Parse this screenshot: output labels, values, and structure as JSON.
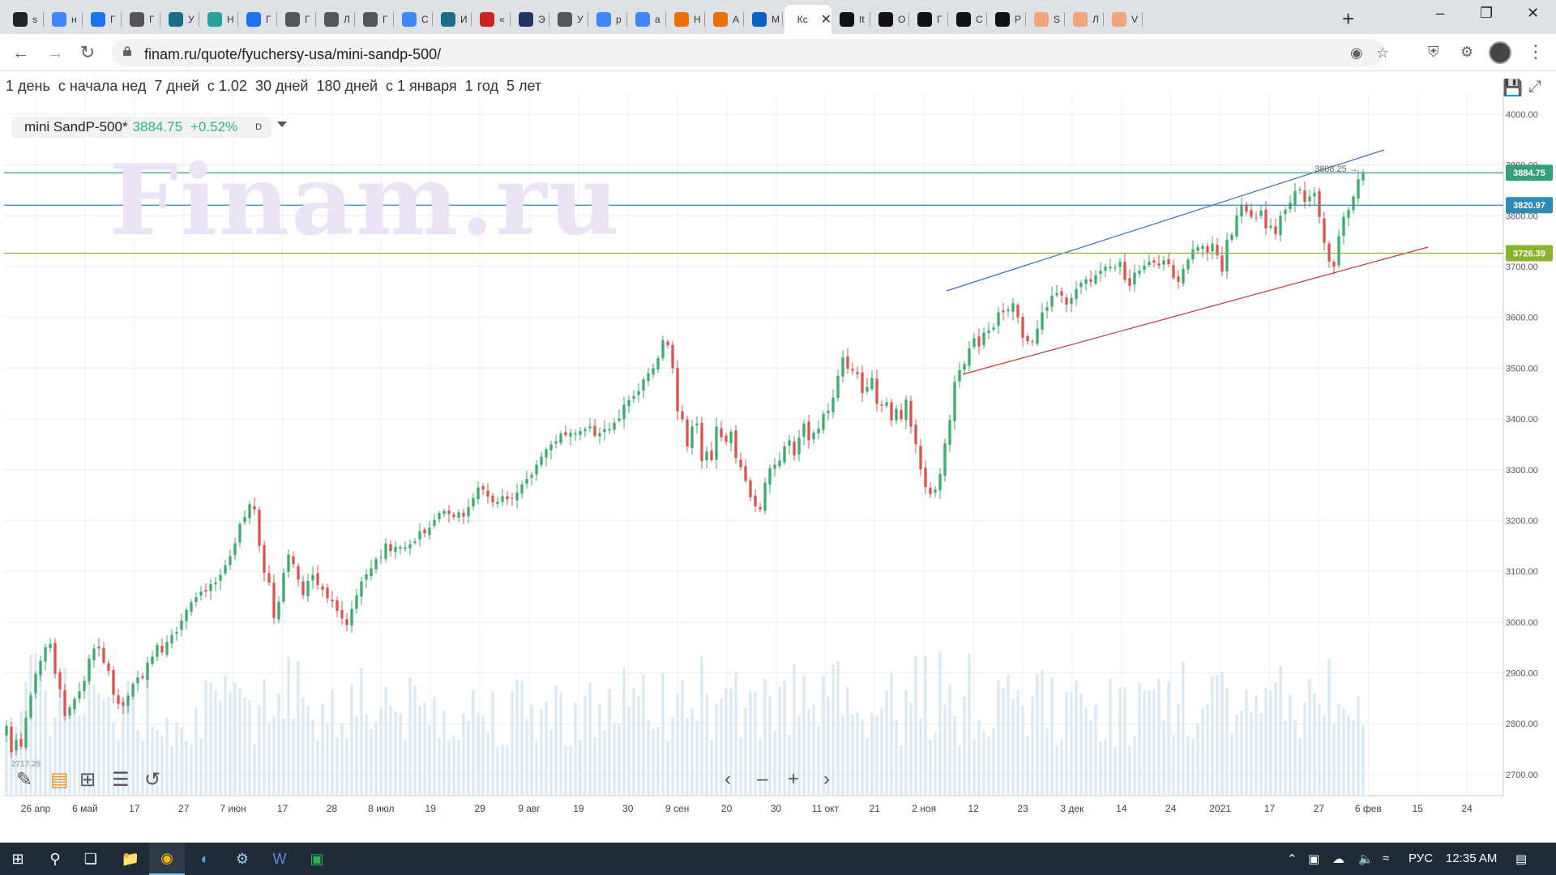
{
  "browser": {
    "tabs": [
      {
        "favicon": "app-icon",
        "color": "#222222",
        "label": "s"
      },
      {
        "favicon": "google-icon",
        "color": "#4285f4",
        "label": "н"
      },
      {
        "favicon": "blue-app-icon",
        "color": "#1a73e8",
        "label": "Г"
      },
      {
        "favicon": "globe-icon",
        "color": "#555555",
        "label": "Г"
      },
      {
        "favicon": "chart-icon",
        "color": "#1b6e8a",
        "label": "У"
      },
      {
        "favicon": "chart-icon",
        "color": "#2aa198",
        "label": "Н"
      },
      {
        "favicon": "blue-app-icon",
        "color": "#1a73e8",
        "label": "Г"
      },
      {
        "favicon": "globe-icon",
        "color": "#555555",
        "label": "Г"
      },
      {
        "favicon": "globe-icon",
        "color": "#555555",
        "label": "Л"
      },
      {
        "favicon": "globe-icon",
        "color": "#555555",
        "label": "Г"
      },
      {
        "favicon": "google-icon",
        "color": "#4285f4",
        "label": "С"
      },
      {
        "favicon": "app-icon",
        "color": "#1b6e8a",
        "label": "И"
      },
      {
        "favicon": "z-icon",
        "color": "#cc2222",
        "label": "«"
      },
      {
        "favicon": "app-icon",
        "color": "#223366",
        "label": "Э"
      },
      {
        "favicon": "globe-icon",
        "color": "#555555",
        "label": "У"
      },
      {
        "favicon": "google-icon",
        "color": "#4285f4",
        "label": "р"
      },
      {
        "favicon": "google-icon",
        "color": "#4285f4",
        "label": "а"
      },
      {
        "favicon": "orange-icon",
        "color": "#e8710a",
        "label": "Н"
      },
      {
        "favicon": "orange-icon",
        "color": "#e8710a",
        "label": "А"
      },
      {
        "favicon": "outlook-icon",
        "color": "#0a64c8",
        "label": "М"
      },
      {
        "favicon": "active-tab",
        "color": "#ffffff",
        "label": "Кс",
        "active": true
      },
      {
        "favicon": "inv-icon",
        "color": "#111111",
        "label": "It"
      },
      {
        "favicon": "inv-icon",
        "color": "#111111",
        "label": "О"
      },
      {
        "favicon": "inv-icon",
        "color": "#111111",
        "label": "Г"
      },
      {
        "favicon": "inv-icon",
        "color": "#111111",
        "label": "С"
      },
      {
        "favicon": "inv-icon",
        "color": "#111111",
        "label": "Р"
      },
      {
        "favicon": "orange-icon",
        "color": "#f2a77a",
        "label": "S"
      },
      {
        "favicon": "orange-icon",
        "color": "#f2a77a",
        "label": "Л"
      },
      {
        "favicon": "orange-icon",
        "color": "#f2a77a",
        "label": "V"
      }
    ],
    "url": "finam.ru/quote/fyuchersy-usa/mini-sandp-500/"
  },
  "periods": [
    "1 день",
    "с начала нед",
    "7 дней",
    "с 1.02",
    "30 дней",
    "180 дней",
    "с 1 января",
    "1 год",
    "5 лет"
  ],
  "legend": {
    "symbol": "mini SandP-500*",
    "price": "3884.75",
    "change": "+0.52%",
    "interval": "D"
  },
  "watermark": "Finam.ru",
  "chart_data": {
    "type": "candlestick",
    "y_ticks": [
      "4000.00",
      "3900.00",
      "3800.00",
      "3700.00",
      "3600.00",
      "3500.00",
      "3400.00",
      "3300.00",
      "3200.00",
      "3100.00",
      "3000.00",
      "2900.00",
      "2800.00",
      "2700.00"
    ],
    "x_ticks": [
      "26 апр",
      "6 май",
      "17",
      "27",
      "7 июн",
      "17",
      "28",
      "8 июл",
      "19",
      "29",
      "9 авг",
      "19",
      "30",
      "9 сен",
      "20",
      "30",
      "11 окт",
      "21",
      "2 ноя",
      "12",
      "23",
      "3 дек",
      "14",
      "24",
      "2021",
      "17",
      "27",
      "6 фев",
      "15",
      "24"
    ],
    "ylim": [
      2660,
      4000
    ],
    "price_lines": [
      {
        "label": "3884.75",
        "value": 3884.75,
        "color": "#35a17c"
      },
      {
        "label": "3820.97",
        "value": 3820.97,
        "color": "#2e8bb8"
      },
      {
        "label": "3726.39",
        "value": 3726.39,
        "color": "#8ab32e"
      }
    ],
    "annotation": "3888.25",
    "corner_label": "2717.25",
    "closes": [
      2796,
      2744,
      2768,
      2755,
      2812,
      2856,
      2898,
      2924,
      2951,
      2957,
      2898,
      2868,
      2815,
      2832,
      2848,
      2864,
      2884,
      2928,
      2948,
      2948,
      2920,
      2904,
      2857,
      2839,
      2835,
      2855,
      2878,
      2891,
      2890,
      2920,
      2932,
      2955,
      2940,
      2961,
      2975,
      2981,
      3003,
      3024,
      3039,
      3049,
      3060,
      3060,
      3075,
      3078,
      3093,
      3112,
      3130,
      3155,
      3193,
      3207,
      3232,
      3222,
      3150,
      3097,
      3078,
      3008,
      3040,
      3097,
      3133,
      3114,
      3084,
      3053,
      3081,
      3093,
      3073,
      3064,
      3047,
      3041,
      3022,
      3007,
      2994,
      3026,
      3053,
      3080,
      3094,
      3106,
      3124,
      3128,
      3155,
      3140,
      3148,
      3148,
      3147,
      3153,
      3159,
      3179,
      3175,
      3186,
      3201,
      3215,
      3219,
      3213,
      3207,
      3216,
      3208,
      3226,
      3244,
      3265,
      3261,
      3247,
      3236,
      3237,
      3248,
      3242,
      3243,
      3255,
      3271,
      3282,
      3290,
      3310,
      3326,
      3340,
      3350,
      3356,
      3371,
      3368,
      3373,
      3372,
      3376,
      3380,
      3385,
      3367,
      3372,
      3380,
      3380,
      3393,
      3401,
      3428,
      3437,
      3445,
      3455,
      3478,
      3490,
      3500,
      3520,
      3555,
      3545,
      3500,
      3415,
      3399,
      3346,
      3385,
      3391,
      3317,
      3336,
      3319,
      3385,
      3364,
      3355,
      3375,
      3323,
      3305,
      3278,
      3246,
      3228,
      3222,
      3275,
      3303,
      3310,
      3318,
      3346,
      3358,
      3328,
      3363,
      3391,
      3358,
      3373,
      3381,
      3410,
      3416,
      3442,
      3485,
      3521,
      3499,
      3495,
      3488,
      3451,
      3463,
      3481,
      3430,
      3426,
      3433,
      3397,
      3420,
      3400,
      3438,
      3385,
      3350,
      3301,
      3266,
      3252,
      3261,
      3292,
      3352,
      3398,
      3473,
      3496,
      3508,
      3539,
      3559,
      3543,
      3570,
      3574,
      3580,
      3610,
      3610,
      3615,
      3628,
      3600,
      3560,
      3553,
      3552,
      3578,
      3610,
      3620,
      3643,
      3648,
      3643,
      3625,
      3638,
      3656,
      3668,
      3675,
      3670,
      3683,
      3692,
      3700,
      3700,
      3698,
      3709,
      3674,
      3662,
      3688,
      3692,
      3702,
      3710,
      3708,
      3702,
      3712,
      3705,
      3678,
      3670,
      3696,
      3714,
      3734,
      3738,
      3740,
      3728,
      3745,
      3722,
      3690,
      3753,
      3763,
      3801,
      3822,
      3808,
      3798,
      3796,
      3810,
      3775,
      3780,
      3764,
      3800,
      3812,
      3826,
      3849,
      3852,
      3827,
      3838,
      3845,
      3798,
      3747,
      3710,
      3700,
      3760,
      3798,
      3812,
      3838,
      3872,
      3884.75
    ]
  }
}
